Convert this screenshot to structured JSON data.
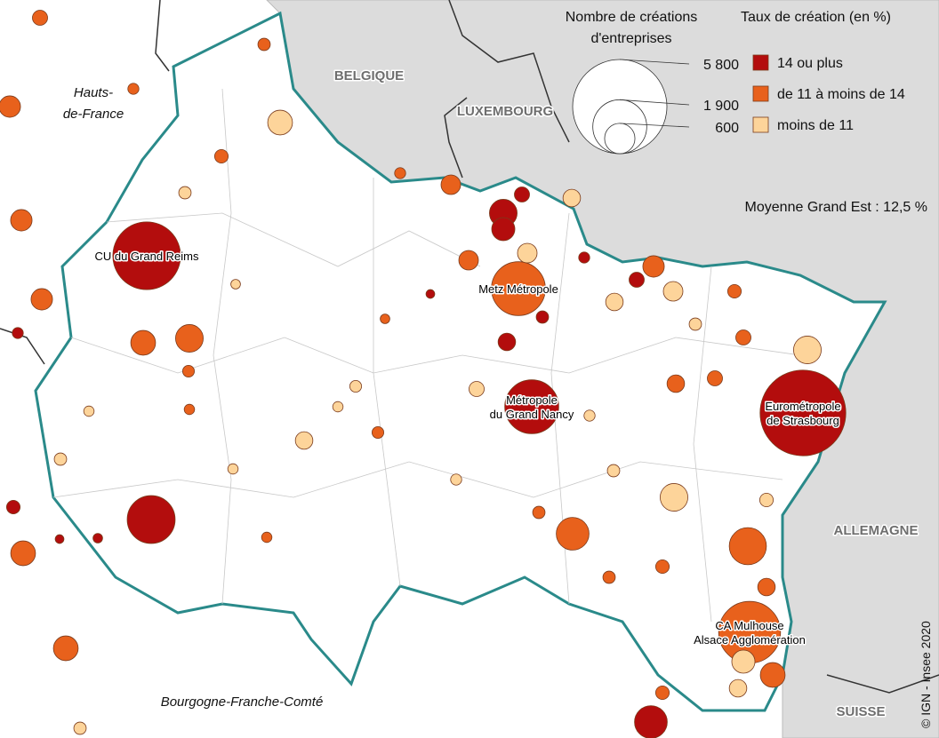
{
  "map": {
    "countries": [
      "BELGIQUE",
      "LUXEMBOURG",
      "ALLEMAGNE",
      "SUISSE"
    ],
    "regions": [
      {
        "lines": [
          "Hauts-",
          "de-France"
        ]
      },
      {
        "lines": [
          "Bourgogne-Franche-Comté"
        ]
      }
    ],
    "bubbles": [
      {
        "lines": [
          "Eurométropole",
          "de Strasbourg"
        ],
        "value": 4800,
        "class": 0
      },
      {
        "lines": [
          "CU du Grand Reims"
        ],
        "value": 3000,
        "class": 0
      },
      {
        "lines": [
          "Metz Métropole"
        ],
        "value": 1900,
        "class": 1
      },
      {
        "lines": [
          "Métropole",
          "du Grand Nancy"
        ],
        "value": 1900,
        "class": 0
      },
      {
        "lines": [
          "CA Mulhouse",
          "Alsace Agglomération"
        ],
        "value": 2500,
        "class": 1
      },
      {
        "value": 1500,
        "class": 0
      },
      {
        "value": 700,
        "class": 1
      },
      {
        "value": 500,
        "class": 1
      },
      {
        "value": 400,
        "class": 1
      },
      {
        "value": 500,
        "class": 2
      },
      {
        "value": 900,
        "class": 1
      },
      {
        "value": 500,
        "class": 2
      },
      {
        "value": 400,
        "class": 1
      },
      {
        "value": 700,
        "class": 0
      },
      {
        "value": 500,
        "class": 0
      },
      {
        "value": 350,
        "class": 0
      },
      {
        "value": 150,
        "class": 0
      },
      {
        "value": 250,
        "class": 2
      },
      {
        "value": 250,
        "class": 1
      },
      {
        "value": 300,
        "class": 1
      },
      {
        "value": 150,
        "class": 0
      },
      {
        "value": 250,
        "class": 2
      },
      {
        "value": 250,
        "class": 1
      },
      {
        "value": 400,
        "class": 2
      },
      {
        "value": 300,
        "class": 1
      },
      {
        "value": 300,
        "class": 1
      },
      {
        "value": 300,
        "class": 1
      },
      {
        "value": 400,
        "class": 1
      },
      {
        "value": 400,
        "class": 1
      },
      {
        "value": 200,
        "class": 2
      },
      {
        "value": 200,
        "class": 2
      },
      {
        "value": 100,
        "class": 2
      },
      {
        "value": 150,
        "class": 1
      },
      {
        "value": 150,
        "class": 1
      },
      {
        "value": 200,
        "class": 1
      },
      {
        "value": 200,
        "class": 1
      },
      {
        "value": 200,
        "class": 2
      },
      {
        "value": 350,
        "class": 2
      },
      {
        "value": 150,
        "class": 2
      },
      {
        "value": 200,
        "class": 0
      },
      {
        "value": 100,
        "class": 0
      },
      {
        "value": 200,
        "class": 2
      },
      {
        "value": 70,
        "class": 2
      },
      {
        "value": 120,
        "class": 1
      },
      {
        "value": 100,
        "class": 2
      },
      {
        "value": 80,
        "class": 0
      },
      {
        "value": 50,
        "class": 0
      },
      {
        "value": 120,
        "class": 0
      },
      {
        "value": 80,
        "class": 0
      },
      {
        "value": 60,
        "class": 0
      },
      {
        "value": 50,
        "class": 0
      },
      {
        "value": 100,
        "class": 1
      },
      {
        "value": 80,
        "class": 1
      },
      {
        "value": 120,
        "class": 1
      },
      {
        "value": 120,
        "class": 2
      },
      {
        "value": 120,
        "class": 1
      },
      {
        "value": 120,
        "class": 1
      },
      {
        "value": 100,
        "class": 2
      },
      {
        "value": 100,
        "class": 1
      },
      {
        "value": 80,
        "class": 2
      },
      {
        "value": 90,
        "class": 1
      },
      {
        "value": 90,
        "class": 1
      },
      {
        "value": 70,
        "class": 2
      },
      {
        "value": 100,
        "class": 2
      },
      {
        "value": 70,
        "class": 2
      },
      {
        "value": 70,
        "class": 1
      },
      {
        "value": 60,
        "class": 2
      },
      {
        "value": 60,
        "class": 1
      },
      {
        "value": 90,
        "class": 2
      },
      {
        "value": 70,
        "class": 1
      },
      {
        "value": 100,
        "class": 1
      },
      {
        "value": 80,
        "class": 2
      },
      {
        "value": 80,
        "class": 1
      },
      {
        "value": 150,
        "class": 1
      },
      {
        "value": 100,
        "class": 2
      }
    ]
  },
  "legend": {
    "size_title": [
      "Nombre de créations",
      "d'entreprises"
    ],
    "sizes": [
      {
        "value": 5800,
        "label": "5 800"
      },
      {
        "value": 1900,
        "label": "1 900"
      },
      {
        "value": 600,
        "label": "600"
      }
    ],
    "color_title": "Taux de création (en %)",
    "classes": [
      {
        "label": "14 ou plus",
        "color": "#b30d0d"
      },
      {
        "label": "de 11 à moins de 14",
        "color": "#e8611c"
      },
      {
        "label": "moins de 11",
        "color": "#fdd49a"
      }
    ]
  },
  "average": "Moyenne Grand Est : 12,5 %",
  "credit": "© IGN - Insee 2020"
}
